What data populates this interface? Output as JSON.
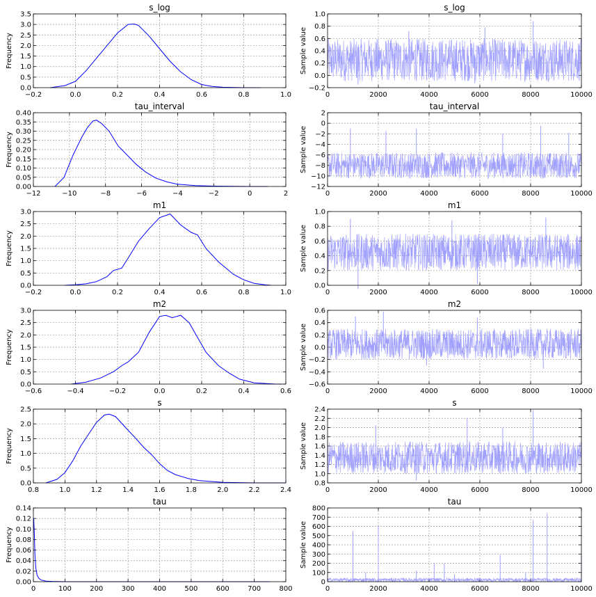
{
  "colors": {
    "density": "#0000ff",
    "trace": "#a0a0ff",
    "grid": "#9a9a9a"
  },
  "chart_data": [
    {
      "type": "line",
      "title": "s_log",
      "xlabel": "",
      "ylabel": "Frequency",
      "xlim": [
        -0.2,
        1.0
      ],
      "ylim": [
        0,
        3.5
      ],
      "xticks": [
        "−0.2",
        "0.0",
        "0.2",
        "0.4",
        "0.6",
        "0.8",
        "1.0"
      ],
      "yticks": [
        "0.0",
        "0.5",
        "1.0",
        "1.5",
        "2.0",
        "2.5",
        "3.0",
        "3.5"
      ],
      "x": [
        -0.12,
        -0.05,
        0.0,
        0.05,
        0.1,
        0.15,
        0.2,
        0.25,
        0.28,
        0.3,
        0.35,
        0.4,
        0.45,
        0.5,
        0.55,
        0.6,
        0.65,
        0.7,
        0.8,
        0.88
      ],
      "y": [
        0.0,
        0.1,
        0.3,
        0.8,
        1.4,
        2.0,
        2.6,
        3.0,
        3.02,
        2.95,
        2.45,
        1.85,
        1.25,
        0.75,
        0.38,
        0.15,
        0.06,
        0.02,
        0.0,
        0.0
      ]
    },
    {
      "type": "line",
      "title": "s_log",
      "xlabel": "",
      "ylabel": "Sample value",
      "xlim": [
        0,
        10000
      ],
      "ylim": [
        -0.2,
        1.0
      ],
      "xticks": [
        "0",
        "2000",
        "4000",
        "6000",
        "8000",
        "10000"
      ],
      "yticks": [
        "−0.2",
        "0.0",
        "0.2",
        "0.4",
        "0.6",
        "0.8",
        "1.0"
      ],
      "mean": 0.28,
      "range": [
        -0.1,
        0.6
      ],
      "spikes": [
        [
          3200,
          0.72
        ],
        [
          6200,
          0.78
        ],
        [
          8100,
          0.88
        ],
        [
          1200,
          -0.15
        ],
        [
          5800,
          -0.13
        ]
      ]
    },
    {
      "type": "line",
      "title": "tau_interval",
      "xlabel": "",
      "ylabel": "Frequency",
      "xlim": [
        -12,
        2
      ],
      "ylim": [
        0,
        0.4
      ],
      "xticks": [
        "−12",
        "−10",
        "−8",
        "−6",
        "−4",
        "−2",
        "0",
        "2"
      ],
      "yticks": [
        "0.00",
        "0.05",
        "0.10",
        "0.15",
        "0.20",
        "0.25",
        "0.30",
        "0.35",
        "0.40"
      ],
      "x": [
        -10.8,
        -10.3,
        -9.8,
        -9.3,
        -9.0,
        -8.7,
        -8.5,
        -8.2,
        -7.8,
        -7.3,
        -6.8,
        -6.3,
        -5.8,
        -5.2,
        -4.6,
        -4.0,
        -3.0,
        -2.0,
        0.0,
        1.0
      ],
      "y": [
        0.0,
        0.05,
        0.17,
        0.27,
        0.32,
        0.355,
        0.36,
        0.34,
        0.3,
        0.22,
        0.17,
        0.12,
        0.08,
        0.045,
        0.025,
        0.012,
        0.005,
        0.002,
        0.0,
        0.0
      ]
    },
    {
      "type": "line",
      "title": "tau_interval",
      "xlabel": "",
      "ylabel": "Sample value",
      "xlim": [
        0,
        10000
      ],
      "ylim": [
        -12,
        2
      ],
      "xticks": [
        "0",
        "2000",
        "4000",
        "6000",
        "8000",
        "10000"
      ],
      "yticks": [
        "−12",
        "−10",
        "−8",
        "−6",
        "−4",
        "−2",
        "0",
        "2"
      ],
      "mean": -8.0,
      "range": [
        -10.5,
        -5.5
      ],
      "spikes": [
        [
          900,
          -1.0
        ],
        [
          2300,
          -1.5
        ],
        [
          3500,
          -1.0
        ],
        [
          6900,
          -2.0
        ],
        [
          8400,
          -0.5
        ],
        [
          9500,
          -1.8
        ]
      ]
    },
    {
      "type": "line",
      "title": "m1",
      "xlabel": "",
      "ylabel": "Frequency",
      "xlim": [
        -0.2,
        1.0
      ],
      "ylim": [
        0,
        3.0
      ],
      "xticks": [
        "−0.2",
        "0.0",
        "0.2",
        "0.4",
        "0.6",
        "0.8",
        "1.0"
      ],
      "yticks": [
        "0.0",
        "0.5",
        "1.0",
        "1.5",
        "2.0",
        "2.5",
        "3.0"
      ],
      "x": [
        -0.05,
        0.0,
        0.05,
        0.1,
        0.15,
        0.18,
        0.22,
        0.25,
        0.3,
        0.35,
        0.4,
        0.45,
        0.5,
        0.55,
        0.58,
        0.62,
        0.68,
        0.75,
        0.8,
        0.85,
        0.9,
        0.93
      ],
      "y": [
        0.0,
        0.02,
        0.06,
        0.15,
        0.35,
        0.6,
        0.7,
        1.1,
        1.8,
        2.3,
        2.75,
        2.9,
        2.45,
        2.15,
        2.05,
        1.5,
        0.95,
        0.45,
        0.22,
        0.08,
        0.02,
        0.0
      ]
    },
    {
      "type": "line",
      "title": "m1",
      "xlabel": "",
      "ylabel": "Sample value",
      "xlim": [
        0,
        10000
      ],
      "ylim": [
        0.0,
        1.0
      ],
      "xticks": [
        "0",
        "2000",
        "4000",
        "6000",
        "8000",
        "10000"
      ],
      "yticks": [
        "0.0",
        "0.2",
        "0.4",
        "0.6",
        "0.8",
        "1.0"
      ],
      "mean": 0.45,
      "range": [
        0.2,
        0.7
      ],
      "spikes": [
        [
          900,
          0.9
        ],
        [
          1200,
          -0.05
        ],
        [
          8600,
          0.92
        ],
        [
          5900,
          0.02
        ],
        [
          4900,
          0.88
        ]
      ]
    },
    {
      "type": "line",
      "title": "m2",
      "xlabel": "",
      "ylabel": "Frequency",
      "xlim": [
        -0.6,
        0.6
      ],
      "ylim": [
        0,
        3.0
      ],
      "xticks": [
        "−0.6",
        "−0.4",
        "−0.2",
        "0.0",
        "0.2",
        "0.4",
        "0.6"
      ],
      "yticks": [
        "0.0",
        "0.5",
        "1.0",
        "1.5",
        "2.0",
        "2.5",
        "3.0"
      ],
      "x": [
        -0.42,
        -0.35,
        -0.28,
        -0.22,
        -0.18,
        -0.15,
        -0.1,
        -0.05,
        0.0,
        0.03,
        0.06,
        0.1,
        0.14,
        0.18,
        0.22,
        0.28,
        0.33,
        0.38,
        0.45,
        0.55,
        0.58
      ],
      "y": [
        0.0,
        0.08,
        0.25,
        0.5,
        0.75,
        0.9,
        1.3,
        2.1,
        2.75,
        2.8,
        2.7,
        2.8,
        2.5,
        1.9,
        1.3,
        0.75,
        0.45,
        0.2,
        0.05,
        0.0,
        0.0
      ]
    },
    {
      "type": "line",
      "title": "m2",
      "xlabel": "",
      "ylabel": "Sample value",
      "xlim": [
        0,
        10000
      ],
      "ylim": [
        -0.6,
        0.6
      ],
      "xticks": [
        "0",
        "2000",
        "4000",
        "6000",
        "8000",
        "10000"
      ],
      "yticks": [
        "−0.6",
        "−0.4",
        "−0.2",
        "0.0",
        "0.2",
        "0.4",
        "0.6"
      ],
      "mean": 0.05,
      "range": [
        -0.2,
        0.3
      ],
      "spikes": [
        [
          2200,
          0.58
        ],
        [
          5900,
          0.48
        ],
        [
          8500,
          -0.35
        ],
        [
          3900,
          -0.3
        ],
        [
          1100,
          0.5
        ]
      ]
    },
    {
      "type": "line",
      "title": "s",
      "xlabel": "",
      "ylabel": "Frequency",
      "xlim": [
        0.8,
        2.4
      ],
      "ylim": [
        0,
        2.5
      ],
      "xticks": [
        "0.8",
        "1.0",
        "1.2",
        "1.4",
        "1.6",
        "1.8",
        "2.0",
        "2.2",
        "2.4"
      ],
      "yticks": [
        "0.0",
        "0.5",
        "1.0",
        "1.5",
        "2.0",
        "2.5"
      ],
      "x": [
        0.88,
        0.95,
        1.0,
        1.05,
        1.1,
        1.15,
        1.2,
        1.25,
        1.28,
        1.32,
        1.38,
        1.45,
        1.5,
        1.55,
        1.6,
        1.65,
        1.7,
        1.78,
        1.85,
        2.0,
        2.2,
        2.4
      ],
      "y": [
        0.0,
        0.12,
        0.35,
        0.75,
        1.25,
        1.65,
        2.05,
        2.3,
        2.33,
        2.25,
        1.9,
        1.5,
        1.2,
        0.95,
        0.65,
        0.42,
        0.28,
        0.15,
        0.08,
        0.02,
        0.0,
        0.0
      ]
    },
    {
      "type": "line",
      "title": "s",
      "xlabel": "",
      "ylabel": "Sample value",
      "xlim": [
        0,
        10000
      ],
      "ylim": [
        0.8,
        2.4
      ],
      "xticks": [
        "0",
        "2000",
        "4000",
        "6000",
        "8000",
        "10000"
      ],
      "yticks": [
        "0.8",
        "1.0",
        "1.2",
        "1.4",
        "1.6",
        "1.8",
        "2.0",
        "2.2",
        "2.4"
      ],
      "mean": 1.3,
      "range": [
        1.0,
        1.7
      ],
      "spikes": [
        [
          8100,
          2.38
        ],
        [
          5500,
          2.2
        ],
        [
          6900,
          2.0
        ],
        [
          1900,
          2.05
        ],
        [
          3500,
          0.85
        ]
      ]
    },
    {
      "type": "line",
      "title": "tau",
      "xlabel": "",
      "ylabel": "Frequency",
      "xlim": [
        0,
        800
      ],
      "ylim": [
        0,
        0.14
      ],
      "xticks": [
        "0",
        "100",
        "200",
        "300",
        "400",
        "500",
        "600",
        "700",
        "800"
      ],
      "yticks": [
        "0.00",
        "0.02",
        "0.04",
        "0.06",
        "0.08",
        "0.10",
        "0.12",
        "0.14"
      ],
      "x": [
        0,
        1,
        3,
        5,
        8,
        12,
        18,
        25,
        40,
        60,
        100,
        200,
        400,
        600,
        750
      ],
      "y": [
        0.12,
        0.12,
        0.09,
        0.05,
        0.025,
        0.012,
        0.006,
        0.003,
        0.001,
        0.0005,
        0.0,
        0.0,
        0.0,
        0.0,
        0.0
      ]
    },
    {
      "type": "line",
      "title": "tau",
      "xlabel": "",
      "ylabel": "Sample value",
      "xlim": [
        0,
        10000
      ],
      "ylim": [
        0,
        800
      ],
      "xticks": [
        "0",
        "2000",
        "4000",
        "6000",
        "8000",
        "10000"
      ],
      "yticks": [
        "0",
        "100",
        "200",
        "300",
        "400",
        "500",
        "600",
        "700",
        "800"
      ],
      "mean": 5,
      "range": [
        0,
        40
      ],
      "spikes": [
        [
          1000,
          550
        ],
        [
          2000,
          610
        ],
        [
          8100,
          670
        ],
        [
          8650,
          745
        ],
        [
          6800,
          290
        ],
        [
          10000,
          290
        ],
        [
          4200,
          200
        ],
        [
          4600,
          200
        ],
        [
          1500,
          100
        ],
        [
          3500,
          120
        ],
        [
          7800,
          100
        ],
        [
          5000,
          80
        ]
      ]
    }
  ]
}
